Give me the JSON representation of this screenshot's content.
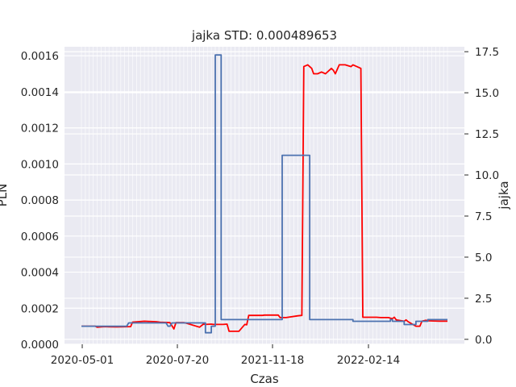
{
  "chart_data": {
    "type": "line",
    "title": "jajka STD: 0.000489653",
    "xlabel": "Czas",
    "ylabel_left": "PLN",
    "ylabel_right": "jajka",
    "x_tick_labels": [
      "2020-05-01",
      "2020-07-20",
      "2021-11-18",
      "2022-02-14"
    ],
    "y_left_lim": [
      0,
      0.00165
    ],
    "y_left_ticks": [
      "0.0000",
      "0.0002",
      "0.0004",
      "0.0006",
      "0.0008",
      "0.0010",
      "0.0012",
      "0.0014",
      "0.0016"
    ],
    "y_right_lim": [
      -0.3,
      17.8
    ],
    "y_right_ticks": [
      "0.0",
      "2.5",
      "5.0",
      "7.5",
      "10.0",
      "12.5",
      "15.0",
      "17.5"
    ],
    "grid": true,
    "colors": {
      "background": "#eaeaf2",
      "grid": "#ffffff",
      "left_series": "#ff0000",
      "right_series": "#4c72b0",
      "text": "#262626"
    },
    "series": [
      {
        "axis": "left",
        "color": "#ff0000",
        "x": [
          0,
          7,
          8,
          12,
          14,
          18,
          25,
          26,
          32,
          34,
          38,
          40,
          45,
          47,
          48,
          52,
          53,
          60,
          62,
          63,
          66,
          67,
          70,
          72,
          74,
          75,
          80,
          83,
          84,
          85,
          92,
          93,
          100,
          101,
          103,
          104,
          110,
          112,
          113,
          115,
          117,
          118,
          120,
          122,
          124,
          127,
          128,
          129,
          131,
          132,
          134,
          137,
          138,
          142,
          143,
          150,
          152,
          153,
          155,
          156,
          157,
          158,
          159,
          160,
          164,
          165,
          166,
          170,
          172,
          173,
          175,
          176,
          182,
          186
        ],
        "y": [
          0.0001,
          0.0001,
          9.5e-05,
          9.8e-05,
          9.7e-05,
          9.6e-05,
          9.8e-05,
          0.000123,
          0.000128,
          0.000127,
          0.000125,
          0.000122,
          0.00012,
          8.5e-05,
          0.00012,
          0.00012,
          0.000118,
          9.5e-05,
          0.000112,
          0.00011,
          0.000112,
          0.00011,
          0.00011,
          0.00011,
          0.000112,
          7.2e-05,
          7.2e-05,
          0.00011,
          0.000108,
          0.00016,
          0.00016,
          0.000162,
          0.000162,
          0.000148,
          0.000148,
          0.000148,
          0.000158,
          0.00016,
          0.00154,
          0.00155,
          0.00153,
          0.0015,
          0.0015,
          0.00151,
          0.0015,
          0.00153,
          0.00152,
          0.0015,
          0.00155,
          0.00155,
          0.00155,
          0.00154,
          0.00155,
          0.00153,
          0.00015,
          0.00015,
          0.000148,
          0.000148,
          0.000148,
          0.000148,
          0.000145,
          0.000142,
          0.00015,
          0.000135,
          0.000128,
          0.000135,
          0.000125,
          0.0001,
          0.0001,
          0.000128,
          0.000133,
          0.00013,
          0.000128,
          0.000128
        ]
      },
      {
        "axis": "right",
        "color": "#4c72b0",
        "x": [
          0,
          23,
          24,
          43,
          44,
          45,
          46,
          63,
          63,
          66,
          66,
          68,
          68,
          71,
          71,
          102,
          102,
          116,
          116,
          138,
          138,
          157,
          157,
          158,
          158,
          164,
          164,
          170,
          170,
          176,
          176,
          186
        ],
        "y": [
          0.8,
          0.8,
          1.0,
          1.0,
          0.8,
          0.8,
          1.0,
          1.0,
          0.4,
          0.4,
          0.8,
          0.8,
          17.3,
          17.3,
          1.2,
          1.2,
          11.2,
          11.2,
          1.2,
          1.2,
          1.1,
          1.1,
          1.2,
          1.2,
          1.1,
          1.1,
          0.9,
          0.9,
          1.1,
          1.1,
          1.2,
          1.2
        ]
      }
    ]
  }
}
